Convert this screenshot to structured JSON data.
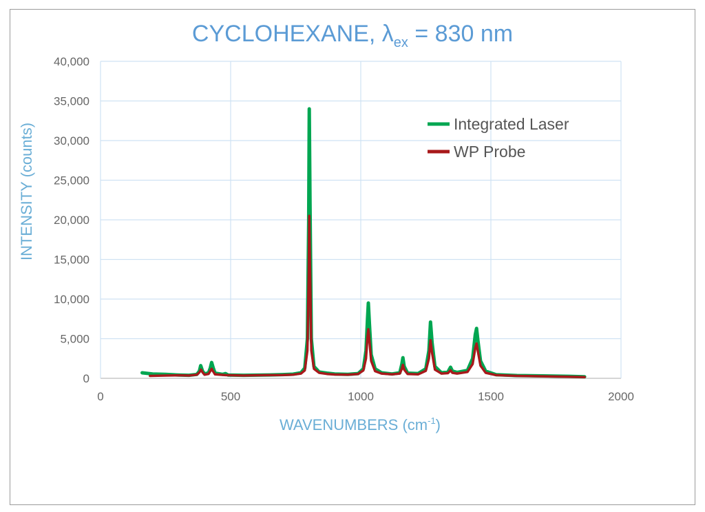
{
  "chart_data": {
    "type": "line",
    "title": {
      "prefix": "CYCLOHEXANE, ",
      "symbol": "λ",
      "subscript": "ex",
      "suffix": " = 830 nm"
    },
    "xlabel": {
      "main": "WAVENUMBERS (cm",
      "sup": "-1",
      "end": ")"
    },
    "ylabel": "INTENSITY (counts)",
    "xlim": [
      0,
      2000
    ],
    "ylim": [
      0,
      40000
    ],
    "x_ticks": [
      0,
      500,
      1000,
      1500,
      2000
    ],
    "x_tick_labels": [
      "0",
      "500",
      "1000",
      "1500",
      "2000"
    ],
    "y_ticks": [
      0,
      5000,
      10000,
      15000,
      20000,
      25000,
      30000,
      35000,
      40000
    ],
    "y_tick_labels": [
      "0",
      "5,000",
      "10,000",
      "15,000",
      "20,000",
      "25,000",
      "30,000",
      "35,000",
      "40,000"
    ],
    "grid": true,
    "legend_position": "top-right",
    "series": [
      {
        "name": "Integrated Laser",
        "color": "#00a651",
        "points": [
          [
            160,
            700
          ],
          [
            200,
            550
          ],
          [
            250,
            500
          ],
          [
            300,
            420
          ],
          [
            340,
            380
          ],
          [
            370,
            500
          ],
          [
            380,
            900
          ],
          [
            385,
            1600
          ],
          [
            392,
            900
          ],
          [
            400,
            550
          ],
          [
            415,
            700
          ],
          [
            422,
            1300
          ],
          [
            427,
            2000
          ],
          [
            433,
            1300
          ],
          [
            440,
            650
          ],
          [
            470,
            500
          ],
          [
            480,
            600
          ],
          [
            490,
            420
          ],
          [
            550,
            380
          ],
          [
            600,
            400
          ],
          [
            650,
            430
          ],
          [
            700,
            470
          ],
          [
            740,
            520
          ],
          [
            770,
            700
          ],
          [
            785,
            1300
          ],
          [
            795,
            5000
          ],
          [
            800,
            20000
          ],
          [
            802,
            34000
          ],
          [
            805,
            22000
          ],
          [
            810,
            5000
          ],
          [
            820,
            1500
          ],
          [
            840,
            800
          ],
          [
            870,
            650
          ],
          [
            900,
            550
          ],
          [
            950,
            500
          ],
          [
            990,
            600
          ],
          [
            1010,
            1200
          ],
          [
            1020,
            3500
          ],
          [
            1026,
            7500
          ],
          [
            1029,
            9500
          ],
          [
            1033,
            7000
          ],
          [
            1040,
            3000
          ],
          [
            1055,
            1200
          ],
          [
            1080,
            700
          ],
          [
            1120,
            550
          ],
          [
            1150,
            700
          ],
          [
            1158,
            1800
          ],
          [
            1162,
            2600
          ],
          [
            1167,
            1500
          ],
          [
            1180,
            650
          ],
          [
            1220,
            600
          ],
          [
            1250,
            1200
          ],
          [
            1262,
            3500
          ],
          [
            1268,
            7100
          ],
          [
            1274,
            4500
          ],
          [
            1285,
            1500
          ],
          [
            1310,
            700
          ],
          [
            1335,
            800
          ],
          [
            1345,
            1400
          ],
          [
            1352,
            900
          ],
          [
            1370,
            750
          ],
          [
            1410,
            1000
          ],
          [
            1430,
            2500
          ],
          [
            1440,
            5500
          ],
          [
            1445,
            6300
          ],
          [
            1450,
            4800
          ],
          [
            1460,
            2200
          ],
          [
            1480,
            900
          ],
          [
            1520,
            450
          ],
          [
            1600,
            350
          ],
          [
            1700,
            300
          ],
          [
            1800,
            250
          ],
          [
            1860,
            200
          ]
        ]
      },
      {
        "name": "WP Probe",
        "color": "#a8191b",
        "points": [
          [
            190,
            300
          ],
          [
            250,
            350
          ],
          [
            300,
            380
          ],
          [
            340,
            350
          ],
          [
            370,
            450
          ],
          [
            380,
            750
          ],
          [
            386,
            1100
          ],
          [
            392,
            750
          ],
          [
            400,
            450
          ],
          [
            415,
            550
          ],
          [
            422,
            900
          ],
          [
            427,
            1200
          ],
          [
            433,
            850
          ],
          [
            440,
            500
          ],
          [
            480,
            400
          ],
          [
            550,
            350
          ],
          [
            600,
            380
          ],
          [
            650,
            400
          ],
          [
            700,
            420
          ],
          [
            740,
            460
          ],
          [
            770,
            600
          ],
          [
            785,
            1000
          ],
          [
            795,
            3500
          ],
          [
            800,
            13000
          ],
          [
            802,
            20500
          ],
          [
            805,
            14000
          ],
          [
            810,
            3500
          ],
          [
            820,
            1200
          ],
          [
            840,
            700
          ],
          [
            870,
            550
          ],
          [
            900,
            480
          ],
          [
            950,
            450
          ],
          [
            990,
            550
          ],
          [
            1010,
            1000
          ],
          [
            1020,
            2500
          ],
          [
            1026,
            5200
          ],
          [
            1029,
            6200
          ],
          [
            1033,
            4800
          ],
          [
            1040,
            2200
          ],
          [
            1055,
            900
          ],
          [
            1080,
            600
          ],
          [
            1120,
            500
          ],
          [
            1150,
            600
          ],
          [
            1158,
            1200
          ],
          [
            1162,
            1700
          ],
          [
            1167,
            1100
          ],
          [
            1180,
            550
          ],
          [
            1220,
            500
          ],
          [
            1250,
            950
          ],
          [
            1262,
            2500
          ],
          [
            1268,
            4800
          ],
          [
            1274,
            3200
          ],
          [
            1285,
            1100
          ],
          [
            1310,
            600
          ],
          [
            1335,
            650
          ],
          [
            1345,
            1000
          ],
          [
            1352,
            700
          ],
          [
            1370,
            600
          ],
          [
            1410,
            800
          ],
          [
            1430,
            1800
          ],
          [
            1440,
            3800
          ],
          [
            1445,
            4400
          ],
          [
            1450,
            3400
          ],
          [
            1460,
            1600
          ],
          [
            1480,
            700
          ],
          [
            1520,
            400
          ],
          [
            1600,
            300
          ],
          [
            1700,
            250
          ],
          [
            1800,
            200
          ],
          [
            1860,
            150
          ]
        ]
      }
    ]
  }
}
